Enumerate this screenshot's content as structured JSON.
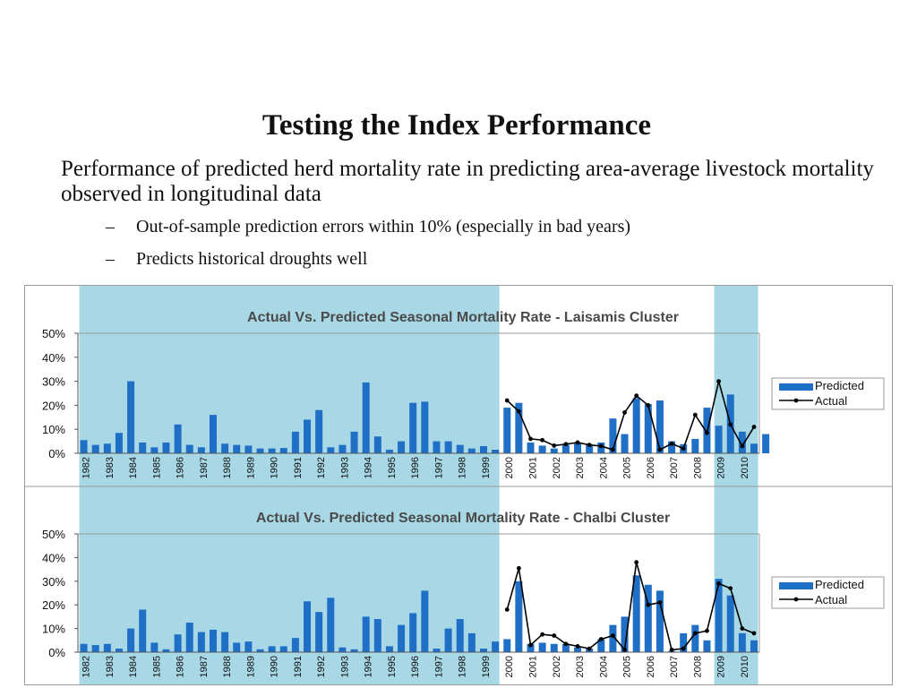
{
  "slide": {
    "title": "Testing the Index Performance",
    "intro": "Performance of predicted herd mortality rate in predicting area-average livestock mortality observed in longitudinal data",
    "bullets": [
      "Out-of-sample prediction errors within 10% (especially in bad years)",
      "Predicts historical droughts well"
    ]
  },
  "colors": {
    "bar": "#1f6fc7",
    "line": "#000000",
    "shade": "#a8d8e6"
  },
  "chart_data": [
    {
      "type": "bar",
      "title": "Actual Vs. Predicted Seasonal Mortality Rate - Laisamis Cluster",
      "y_ticks": [
        "0%",
        "10%",
        "20%",
        "30%",
        "40%",
        "50%"
      ],
      "ylim": [
        0,
        50
      ],
      "year_labels": [
        "1982",
        "1983",
        "1984",
        "1985",
        "1986",
        "1987",
        "1988",
        "1989",
        "1990",
        "1991",
        "1992",
        "1993",
        "1994",
        "1995",
        "1996",
        "1997",
        "1998",
        "1999",
        "2000",
        "2001",
        "2002",
        "2003",
        "2004",
        "2005",
        "2006",
        "2007",
        "2008",
        "2009",
        "2010"
      ],
      "shaded_ranges": [
        [
          1982,
          1999
        ],
        [
          2009,
          2010
        ]
      ],
      "legend": [
        "Predicted",
        "Actual"
      ],
      "series": [
        {
          "name": "Predicted",
          "kind": "bar",
          "values": [
            5.5,
            3.5,
            4,
            8.5,
            30,
            4.5,
            2.5,
            4.5,
            12,
            3.5,
            2.5,
            16,
            4,
            3.5,
            3.2,
            2,
            2,
            2.2,
            9,
            14,
            18,
            2.5,
            3.5,
            9,
            29.5,
            7,
            1.5,
            5,
            21,
            21.5,
            5,
            5,
            3.5,
            2,
            3,
            1.5,
            19,
            21,
            4.5,
            3.2,
            2,
            3.5,
            4.5,
            3.5,
            4.5,
            14.5,
            8,
            23,
            20.5,
            22,
            5,
            3.8,
            6,
            19,
            11.5,
            24.5,
            9,
            4,
            8
          ]
        },
        {
          "name": "Actual",
          "kind": "line",
          "start_index": 36,
          "values": [
            22,
            17.5,
            6,
            5.5,
            3.2,
            3.8,
            4.5,
            3.5,
            3,
            1.5,
            17,
            24,
            20,
            1.5,
            4,
            2,
            16,
            8.5,
            30,
            12,
            3,
            11
          ]
        }
      ]
    },
    {
      "type": "bar",
      "title": "Actual Vs. Predicted Seasonal Mortality Rate - Chalbi Cluster",
      "y_ticks": [
        "0%",
        "10%",
        "20%",
        "30%",
        "40%",
        "50%"
      ],
      "ylim": [
        0,
        50
      ],
      "year_labels": [
        "1982",
        "1983",
        "1984",
        "1985",
        "1986",
        "1987",
        "1988",
        "1989",
        "1990",
        "1991",
        "1992",
        "1993",
        "1994",
        "1995",
        "1996",
        "1997",
        "1998",
        "1999",
        "2000",
        "2001",
        "2002",
        "2003",
        "2004",
        "2005",
        "2006",
        "2007",
        "2008",
        "2009",
        "2010"
      ],
      "shaded_ranges": [
        [
          1982,
          1999
        ],
        [
          2009,
          2010
        ]
      ],
      "legend": [
        "Predicted",
        "Actual"
      ],
      "series": [
        {
          "name": "Predicted",
          "kind": "bar",
          "values": [
            3.5,
            3,
            3.5,
            1.5,
            10,
            18,
            4,
            1.2,
            7.5,
            12.5,
            8.5,
            9.5,
            8.5,
            4,
            4.5,
            1.2,
            2.5,
            2.5,
            6,
            21.5,
            17,
            23,
            2,
            1.2,
            15,
            14,
            2.5,
            11.5,
            16.5,
            26,
            1.5,
            10,
            14,
            8,
            1.5,
            4.5,
            5.5,
            30,
            3.5,
            4,
            3.5,
            3.5,
            2,
            1.5,
            5.5,
            11.5,
            15,
            32.5,
            28.5,
            26,
            0.5,
            8,
            11.5,
            5,
            31,
            24,
            8,
            5
          ]
        },
        {
          "name": "Actual",
          "kind": "line",
          "start_index": 36,
          "values": [
            18,
            35.5,
            3,
            7.5,
            7,
            3.5,
            2.5,
            1.5,
            5.5,
            7,
            1,
            38,
            20,
            21,
            1,
            1.5,
            8,
            9,
            29,
            27,
            10,
            8
          ]
        }
      ]
    }
  ]
}
